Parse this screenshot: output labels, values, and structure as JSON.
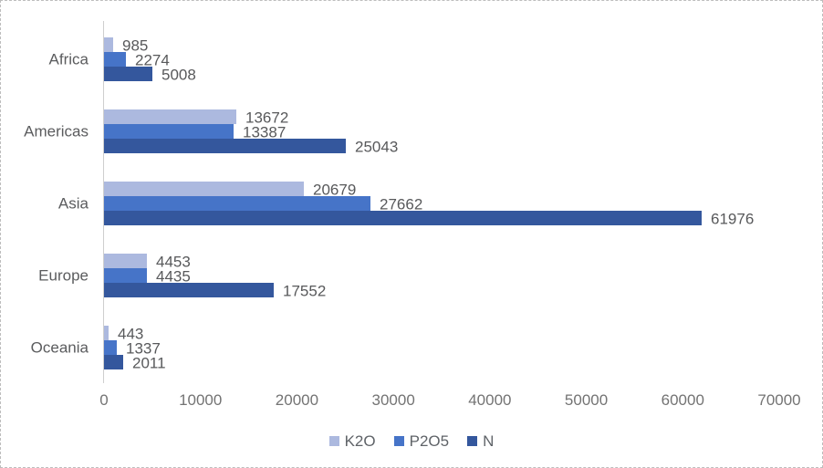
{
  "chart_data": {
    "type": "bar",
    "orientation": "horizontal",
    "title": "",
    "xlabel": "",
    "ylabel": "",
    "categories": [
      "Africa",
      "Americas",
      "Asia",
      "Europe",
      "Oceania"
    ],
    "series": [
      {
        "name": "K2O",
        "color": "#ACB9DF",
        "values": [
          985,
          13672,
          20679,
          4453,
          443
        ]
      },
      {
        "name": "P2O5",
        "color": "#4674C8",
        "values": [
          2274,
          13387,
          27662,
          4435,
          1337
        ]
      },
      {
        "name": "N",
        "color": "#34579D",
        "values": [
          5008,
          25043,
          61976,
          17552,
          2011
        ]
      }
    ],
    "value_labels_shown": true,
    "xlim": [
      0,
      70000
    ],
    "x_ticks": [
      0,
      10000,
      20000,
      30000,
      40000,
      50000,
      60000,
      70000
    ],
    "grid": false,
    "legend_position": "bottom"
  },
  "colors": {
    "background": "#ffffff",
    "frame_border": "#bdbdbd",
    "axis_line": "#cfcfcf",
    "value_label_text": "#58595b",
    "category_text": "#5b5c5e",
    "tick_text": "#737373",
    "legend_text": "#5f6368"
  }
}
